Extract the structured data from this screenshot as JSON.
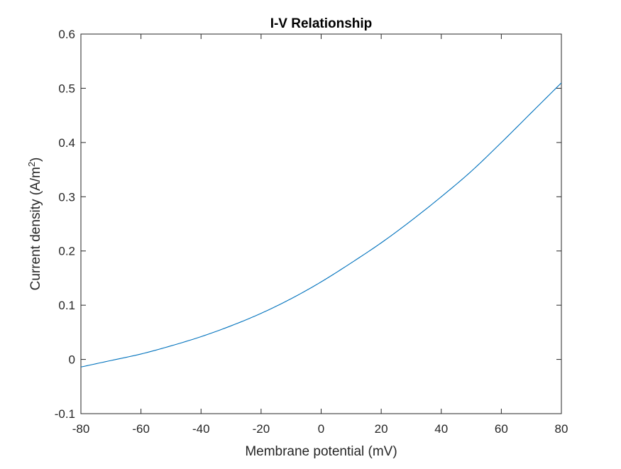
{
  "chart_data": {
    "type": "line",
    "title": "I-V Relationship",
    "xlabel": "Membrane potential (mV)",
    "ylabel": {
      "text": "Current density (A/m",
      "superscript": "2",
      "suffix": ")"
    },
    "xlim": [
      -80,
      80
    ],
    "ylim": [
      -0.1,
      0.6
    ],
    "xticks": [
      -80,
      -60,
      -40,
      -20,
      0,
      20,
      40,
      60,
      80
    ],
    "xtick_labels": [
      "-80",
      "-60",
      "-40",
      "-20",
      "0",
      "20",
      "40",
      "60",
      "80"
    ],
    "yticks": [
      -0.1,
      0,
      0.1,
      0.2,
      0.3,
      0.4,
      0.5,
      0.6
    ],
    "ytick_labels": [
      "-0.1",
      "0",
      "0.1",
      "0.2",
      "0.3",
      "0.4",
      "0.5",
      "0.6"
    ],
    "grid": false,
    "box": true,
    "series": [
      {
        "color": "#0072bd",
        "x": [
          -80,
          -70,
          -60,
          -50,
          -40,
          -30,
          -20,
          -10,
          0,
          10,
          20,
          30,
          40,
          50,
          60,
          70,
          80
        ],
        "y": [
          -0.014,
          -0.002,
          0.01,
          0.025,
          0.042,
          0.062,
          0.085,
          0.112,
          0.143,
          0.178,
          0.215,
          0.256,
          0.3,
          0.347,
          0.4,
          0.455,
          0.51
        ]
      }
    ]
  }
}
